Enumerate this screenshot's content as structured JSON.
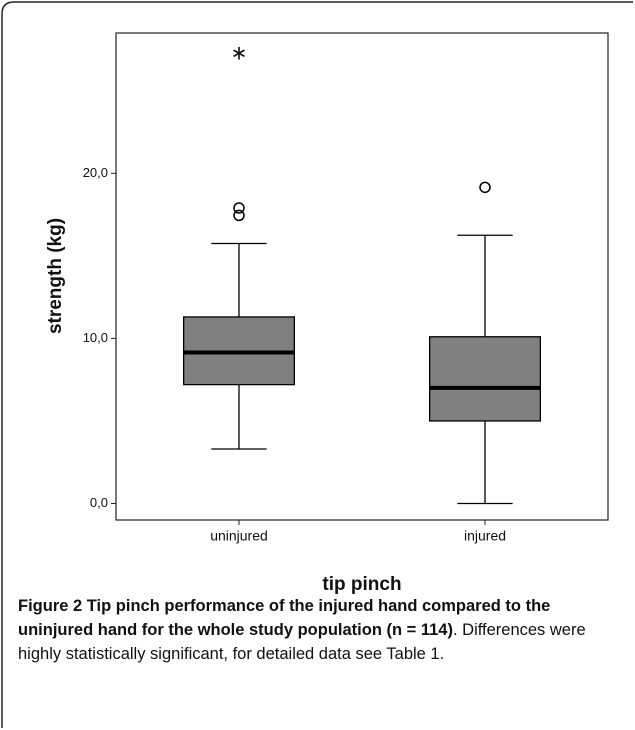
{
  "chart_data": {
    "type": "box",
    "y_label": "strength (kg)",
    "x_label": "tip pinch",
    "categories": [
      "uninjured",
      "injured"
    ],
    "color": "#808080",
    "series": [
      {
        "whisker_low": 3.3,
        "q1": 7.2,
        "median": 9.15,
        "q3": 11.3,
        "whisker_high": 15.75,
        "outliers": [
          17.45,
          17.9
        ],
        "extremes": [
          27.4
        ]
      },
      {
        "whisker_low": 0.0,
        "q1": 5.0,
        "median": 7.0,
        "q3": 10.1,
        "whisker_high": 16.25,
        "outliers": [
          19.15
        ],
        "extremes": []
      }
    ],
    "ylim": [
      -1.0,
      28.5
    ],
    "yticks": [
      {
        "value": 0,
        "label": "0,0"
      },
      {
        "value": 10,
        "label": "10,0"
      },
      {
        "value": 20,
        "label": "20,0"
      }
    ]
  },
  "caption": {
    "bold": "Figure 2 Tip pinch performance of the injured hand compared to the uninjured hand for the whole study population (n = 114)",
    "text": ". Differences were highly statistically significant, for detailed data see Table 1."
  }
}
